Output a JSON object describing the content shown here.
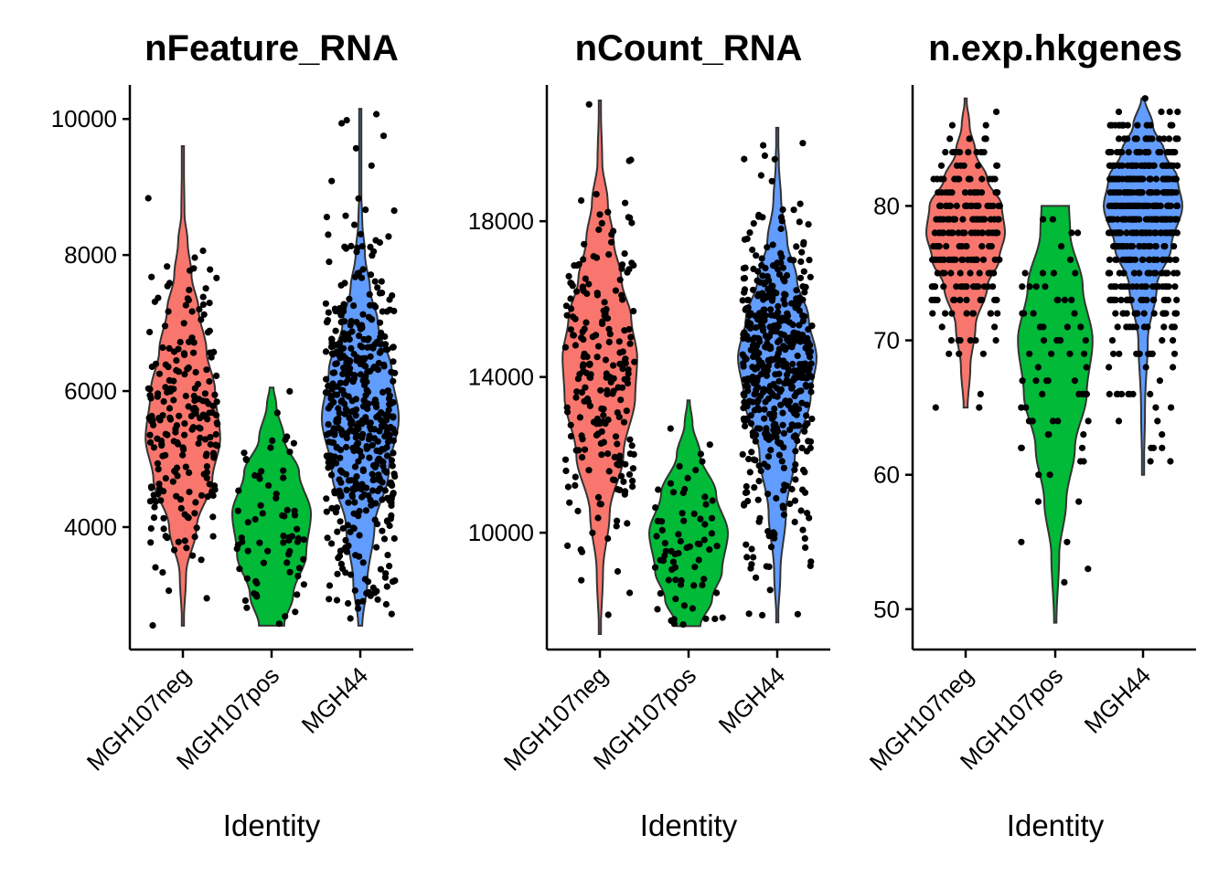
{
  "colors": {
    "MGH107neg": "#F8766D",
    "MGH107pos": "#00BA38",
    "MGH44": "#619CFF"
  },
  "chart_data": [
    {
      "type": "violin",
      "title": "nFeature_RNA",
      "xlabel": "Identity",
      "ylabel": "",
      "categories": [
        "MGH107neg",
        "MGH107pos",
        "MGH44"
      ],
      "ylim": [
        2200,
        10500
      ],
      "yticks": [
        4000,
        6000,
        8000,
        10000
      ],
      "groups": [
        {
          "name": "MGH107neg",
          "min": 2550,
          "max": 9600,
          "n": 220,
          "profile": [
            [
              2550,
              0.02
            ],
            [
              3300,
              0.08
            ],
            [
              4000,
              0.35
            ],
            [
              4700,
              0.75
            ],
            [
              5300,
              0.95
            ],
            [
              6000,
              0.82
            ],
            [
              6600,
              0.6
            ],
            [
              7200,
              0.4
            ],
            [
              7700,
              0.22
            ],
            [
              8200,
              0.12
            ],
            [
              8600,
              0.04
            ],
            [
              9600,
              0.02
            ]
          ]
        },
        {
          "name": "MGH107pos",
          "min": 2550,
          "max": 6050,
          "n": 70,
          "profile": [
            [
              2550,
              0.32
            ],
            [
              3000,
              0.55
            ],
            [
              3600,
              0.88
            ],
            [
              4200,
              1.0
            ],
            [
              4800,
              0.7
            ],
            [
              5300,
              0.32
            ],
            [
              5800,
              0.12
            ],
            [
              6050,
              0.05
            ]
          ]
        },
        {
          "name": "MGH44",
          "min": 2550,
          "max": 10150,
          "n": 500,
          "profile": [
            [
              2550,
              0.05
            ],
            [
              3200,
              0.18
            ],
            [
              4000,
              0.36
            ],
            [
              4800,
              0.72
            ],
            [
              5600,
              0.98
            ],
            [
              6300,
              0.8
            ],
            [
              7000,
              0.45
            ],
            [
              7500,
              0.25
            ],
            [
              8000,
              0.12
            ],
            [
              8500,
              0.05
            ],
            [
              9000,
              0.02
            ],
            [
              10150,
              0.01
            ]
          ]
        }
      ]
    },
    {
      "type": "violin",
      "title": "nCount_RNA",
      "xlabel": "Identity",
      "ylabel": "",
      "categories": [
        "MGH107neg",
        "MGH107pos",
        "MGH44"
      ],
      "ylim": [
        7000,
        21500
      ],
      "yticks": [
        10000,
        14000,
        18000
      ],
      "groups": [
        {
          "name": "MGH107neg",
          "min": 7400,
          "max": 21100,
          "n": 220,
          "profile": [
            [
              7400,
              0.02
            ],
            [
              9000,
              0.08
            ],
            [
              10500,
              0.25
            ],
            [
              12000,
              0.6
            ],
            [
              13500,
              0.9
            ],
            [
              14500,
              0.95
            ],
            [
              15500,
              0.8
            ],
            [
              16500,
              0.55
            ],
            [
              17500,
              0.35
            ],
            [
              18500,
              0.2
            ],
            [
              19500,
              0.06
            ],
            [
              21100,
              0.02
            ]
          ]
        },
        {
          "name": "MGH107pos",
          "min": 7600,
          "max": 13400,
          "n": 70,
          "profile": [
            [
              7600,
              0.3
            ],
            [
              8300,
              0.6
            ],
            [
              9000,
              0.85
            ],
            [
              10000,
              1.0
            ],
            [
              11000,
              0.7
            ],
            [
              12000,
              0.3
            ],
            [
              12800,
              0.1
            ],
            [
              13400,
              0.03
            ]
          ]
        },
        {
          "name": "MGH44",
          "min": 7700,
          "max": 20400,
          "n": 500,
          "profile": [
            [
              7700,
              0.02
            ],
            [
              9000,
              0.08
            ],
            [
              10500,
              0.22
            ],
            [
              12000,
              0.45
            ],
            [
              13500,
              0.85
            ],
            [
              14500,
              1.0
            ],
            [
              15500,
              0.8
            ],
            [
              16500,
              0.5
            ],
            [
              17500,
              0.25
            ],
            [
              18500,
              0.1
            ],
            [
              19500,
              0.04
            ],
            [
              20400,
              0.01
            ]
          ]
        }
      ]
    },
    {
      "type": "violin",
      "title": "n.exp.hkgenes",
      "xlabel": "Identity",
      "ylabel": "",
      "categories": [
        "MGH107neg",
        "MGH107pos",
        "MGH44"
      ],
      "ylim": [
        47,
        89
      ],
      "yticks": [
        50,
        60,
        70,
        80
      ],
      "discrete_y": true,
      "groups": [
        {
          "name": "MGH107neg",
          "min": 65,
          "max": 88,
          "n": 220,
          "profile": [
            [
              65,
              0.05
            ],
            [
              68,
              0.12
            ],
            [
              71,
              0.25
            ],
            [
              74,
              0.55
            ],
            [
              76,
              0.85
            ],
            [
              78,
              1.0
            ],
            [
              80,
              0.92
            ],
            [
              82,
              0.55
            ],
            [
              84,
              0.25
            ],
            [
              86,
              0.1
            ],
            [
              88,
              0.02
            ]
          ]
        },
        {
          "name": "MGH107pos",
          "min": 49,
          "max": 80,
          "n": 70,
          "profile": [
            [
              49,
              0.03
            ],
            [
              54,
              0.1
            ],
            [
              58,
              0.28
            ],
            [
              62,
              0.5
            ],
            [
              66,
              0.8
            ],
            [
              70,
              0.95
            ],
            [
              74,
              0.7
            ],
            [
              78,
              0.38
            ],
            [
              80,
              0.35
            ]
          ]
        },
        {
          "name": "MGH44",
          "min": 60,
          "max": 88,
          "n": 500,
          "profile": [
            [
              60,
              0.02
            ],
            [
              65,
              0.05
            ],
            [
              70,
              0.12
            ],
            [
              74,
              0.35
            ],
            [
              77,
              0.72
            ],
            [
              80,
              1.0
            ],
            [
              82,
              0.88
            ],
            [
              84,
              0.55
            ],
            [
              86,
              0.25
            ],
            [
              88,
              0.04
            ]
          ]
        }
      ]
    }
  ]
}
